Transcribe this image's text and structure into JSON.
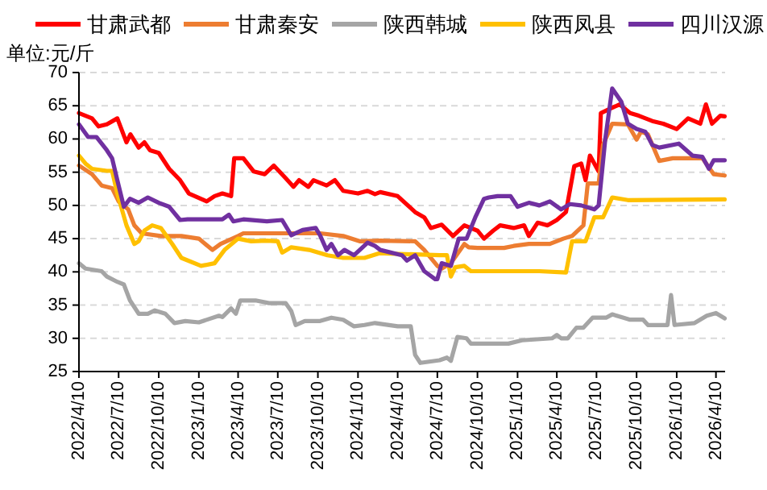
{
  "chart_data": {
    "type": "line",
    "ylabel": "单位:元/斤",
    "legend": "top",
    "grid": "y",
    "line_style": "solid",
    "xlim": [
      "2022-04-10",
      "2026-05-01"
    ],
    "xticks": [
      {
        "value": "2022-04-10",
        "label": "2022/4/10"
      },
      {
        "value": "2022-07-10",
        "label": "2022/7/10"
      },
      {
        "value": "2022-10-10",
        "label": "2022/10/10"
      },
      {
        "value": "2023-01-10",
        "label": "2023/1/10"
      },
      {
        "value": "2023-04-10",
        "label": "2023/4/10"
      },
      {
        "value": "2023-07-10",
        "label": "2023/7/10"
      },
      {
        "value": "2023-10-10",
        "label": "2023/10/10"
      },
      {
        "value": "2024-01-10",
        "label": "2024/1/10"
      },
      {
        "value": "2024-04-10",
        "label": "2024/4/10"
      },
      {
        "value": "2024-07-10",
        "label": "2024/7/10"
      },
      {
        "value": "2024-10-10",
        "label": "2024/10/10"
      },
      {
        "value": "2025-01-10",
        "label": "2025/1/10"
      },
      {
        "value": "2025-04-10",
        "label": "2025/4/10"
      },
      {
        "value": "2025-07-10",
        "label": "2025/7/10"
      },
      {
        "value": "2025-10-10",
        "label": "2025/10/10"
      },
      {
        "value": "2026-01-10",
        "label": "2026/1/10"
      },
      {
        "value": "2026-04-10",
        "label": "2026/4/10"
      }
    ],
    "ylim": [
      25,
      70
    ],
    "yticks": [
      25,
      30,
      35,
      40,
      45,
      50,
      55,
      60,
      65,
      70
    ],
    "series": [
      {
        "name": "甘肃武都",
        "color": "#ff0000",
        "x": [
          "2022-04-10",
          "2022-05-10",
          "2022-05-25",
          "2022-06-13",
          "2022-07-07",
          "2022-07-28",
          "2022-08-06",
          "2022-08-25",
          "2022-09-07",
          "2022-09-20",
          "2022-10-10",
          "2022-11-03",
          "2022-11-28",
          "2022-12-18",
          "2023-01-28",
          "2023-02-15",
          "2023-03-05",
          "2023-03-25",
          "2023-04-01",
          "2023-04-22",
          "2023-05-16",
          "2023-06-10",
          "2023-07-01",
          "2023-07-28",
          "2023-08-15",
          "2023-08-28",
          "2023-09-18",
          "2023-09-30",
          "2023-10-30",
          "2023-11-18",
          "2023-12-07",
          "2024-01-10",
          "2024-02-01",
          "2024-02-18",
          "2024-03-01",
          "2024-04-10",
          "2024-05-20",
          "2024-06-10",
          "2024-06-25",
          "2024-07-20",
          "2024-08-15",
          "2024-09-10",
          "2024-10-10",
          "2024-10-25",
          "2024-11-15",
          "2024-12-01",
          "2025-01-01",
          "2025-01-25",
          "2025-02-05",
          "2025-02-25",
          "2025-03-20",
          "2025-04-10",
          "2025-05-01",
          "2025-05-20",
          "2025-06-05",
          "2025-06-15",
          "2025-06-25",
          "2025-07-15",
          "2025-07-20",
          "2025-08-15",
          "2025-09-01",
          "2025-09-25",
          "2025-10-15",
          "2025-11-15",
          "2025-12-10",
          "2026-01-10",
          "2026-02-05",
          "2026-03-05",
          "2026-03-18",
          "2026-04-01",
          "2026-04-20",
          "2026-04-30"
        ],
        "values": [
          63.9,
          63.1,
          61.9,
          62.2,
          63.1,
          59.5,
          60.7,
          58.7,
          59.5,
          58.3,
          57.9,
          55.5,
          53.8,
          51.8,
          50.6,
          51.4,
          51.8,
          51.4,
          57.1,
          57.1,
          55.1,
          54.7,
          56.0,
          54.1,
          52.8,
          53.8,
          52.8,
          53.8,
          53.0,
          53.8,
          52.2,
          51.8,
          52.2,
          51.7,
          52.0,
          51.4,
          49.0,
          48.2,
          46.6,
          47.1,
          45.4,
          47.0,
          46.2,
          45.0,
          46.2,
          47.0,
          46.6,
          47.0,
          45.4,
          47.4,
          47.0,
          47.8,
          49.0,
          55.9,
          56.3,
          53.8,
          57.5,
          55.1,
          63.9,
          64.7,
          65.2,
          63.9,
          63.5,
          62.7,
          62.3,
          61.5,
          63.1,
          62.3,
          65.2,
          62.3,
          63.5,
          63.4
        ]
      },
      {
        "name": "甘肃秦安",
        "color": "#ed7d31",
        "x": [
          "2022-04-10",
          "2022-05-10",
          "2022-06-01",
          "2022-06-25",
          "2022-07-10",
          "2022-08-01",
          "2022-08-15",
          "2022-09-01",
          "2022-10-15",
          "2022-12-01",
          "2023-01-10",
          "2023-02-10",
          "2023-03-01",
          "2023-04-10",
          "2023-04-22",
          "2023-10-15",
          "2023-12-07",
          "2024-01-15",
          "2024-03-01",
          "2024-05-20",
          "2024-06-10",
          "2024-07-10",
          "2024-07-20",
          "2024-08-10",
          "2024-09-10",
          "2024-09-20",
          "2024-10-10",
          "2024-12-10",
          "2025-01-01",
          "2025-02-05",
          "2025-03-25",
          "2025-04-25",
          "2025-05-15",
          "2025-06-10",
          "2025-06-20",
          "2025-07-15",
          "2025-07-25",
          "2025-08-15",
          "2025-09-20",
          "2025-10-10",
          "2025-10-20",
          "2025-11-05",
          "2025-12-01",
          "2026-01-01",
          "2026-03-10",
          "2026-04-05",
          "2026-04-30"
        ],
        "values": [
          56.0,
          54.7,
          53.0,
          52.6,
          50.6,
          49.4,
          47.0,
          45.8,
          45.4,
          45.4,
          45.0,
          43.3,
          44.2,
          45.4,
          45.8,
          45.8,
          45.4,
          44.6,
          44.7,
          44.6,
          43.3,
          40.9,
          40.5,
          41.3,
          44.2,
          43.7,
          43.6,
          43.6,
          43.9,
          44.2,
          44.2,
          45.0,
          45.4,
          47.0,
          53.3,
          53.3,
          59.1,
          62.3,
          62.2,
          59.9,
          61.1,
          60.7,
          56.7,
          57.1,
          57.1,
          54.7,
          54.5
        ]
      },
      {
        "name": "陕西韩城",
        "color": "#a5a5a5",
        "x": [
          "2022-04-10",
          "2022-04-25",
          "2022-06-01",
          "2022-06-13",
          "2022-07-07",
          "2022-07-22",
          "2022-08-05",
          "2022-08-25",
          "2022-09-15",
          "2022-10-01",
          "2022-10-25",
          "2022-11-15",
          "2022-12-10",
          "2023-01-10",
          "2023-02-25",
          "2023-03-05",
          "2023-03-25",
          "2023-04-05",
          "2023-04-15",
          "2023-05-20",
          "2023-06-20",
          "2023-07-28",
          "2023-08-10",
          "2023-08-20",
          "2023-09-10",
          "2023-10-15",
          "2023-11-10",
          "2023-12-07",
          "2024-01-01",
          "2024-01-25",
          "2024-02-18",
          "2024-04-10",
          "2024-05-10",
          "2024-05-20",
          "2024-06-01",
          "2024-07-15",
          "2024-08-01",
          "2024-08-10",
          "2024-08-25",
          "2024-09-15",
          "2024-09-25",
          "2024-12-20",
          "2025-01-20",
          "2025-03-30",
          "2025-04-10",
          "2025-04-20",
          "2025-05-05",
          "2025-05-25",
          "2025-06-10",
          "2025-07-01",
          "2025-08-01",
          "2025-08-15",
          "2025-09-10",
          "2025-09-25",
          "2025-10-25",
          "2025-11-05",
          "2025-12-20",
          "2025-12-28",
          "2026-01-05",
          "2026-02-20",
          "2026-03-20",
          "2026-04-10",
          "2026-04-30"
        ],
        "values": [
          41.3,
          40.5,
          40.1,
          39.3,
          38.5,
          38.1,
          35.7,
          33.7,
          33.7,
          34.2,
          33.7,
          32.3,
          32.6,
          32.4,
          33.4,
          33.2,
          34.5,
          33.7,
          35.7,
          35.7,
          35.3,
          35.3,
          34.1,
          32.0,
          32.6,
          32.6,
          33.1,
          32.8,
          31.8,
          32.0,
          32.3,
          31.8,
          31.8,
          27.5,
          26.3,
          26.7,
          27.1,
          26.6,
          30.2,
          30.0,
          29.2,
          29.2,
          29.7,
          30.0,
          30.5,
          30.0,
          30.0,
          31.6,
          31.6,
          33.1,
          33.1,
          33.6,
          33.1,
          32.8,
          32.8,
          32.0,
          32.0,
          36.5,
          32.0,
          32.3,
          33.4,
          33.8,
          33.0
        ]
      },
      {
        "name": "陕西凤县",
        "color": "#ffc000",
        "x": [
          "2022-04-10",
          "2022-04-25",
          "2022-05-10",
          "2022-06-13",
          "2022-06-25",
          "2022-07-07",
          "2022-07-28",
          "2022-08-15",
          "2022-08-25",
          "2022-09-07",
          "2022-09-25",
          "2022-10-15",
          "2022-11-10",
          "2022-12-01",
          "2023-01-15",
          "2023-02-15",
          "2023-03-10",
          "2023-04-10",
          "2023-05-10",
          "2023-06-15",
          "2023-07-10",
          "2023-07-20",
          "2023-08-10",
          "2023-09-20",
          "2023-11-01",
          "2023-12-07",
          "2024-01-25",
          "2024-02-28",
          "2024-07-15",
          "2024-08-01",
          "2024-08-10",
          "2024-08-20",
          "2024-09-10",
          "2024-09-25",
          "2025-03-01",
          "2025-05-01",
          "2025-05-15",
          "2025-06-15",
          "2025-07-05",
          "2025-07-25",
          "2025-08-15",
          "2025-09-20",
          "2026-04-30"
        ],
        "values": [
          57.5,
          56.3,
          55.5,
          55.2,
          55.2,
          51.8,
          47.0,
          44.2,
          44.6,
          46.2,
          47.0,
          46.6,
          44.2,
          42.1,
          40.9,
          41.3,
          43.3,
          45.0,
          44.6,
          44.7,
          44.6,
          42.9,
          43.7,
          43.3,
          42.5,
          42.1,
          42.1,
          42.8,
          42.5,
          42.5,
          39.3,
          40.7,
          40.9,
          40.1,
          40.1,
          39.9,
          44.6,
          44.6,
          48.2,
          48.2,
          51.2,
          50.8,
          50.9
        ]
      },
      {
        "name": "四川汉源",
        "color": "#7030a0",
        "x": [
          "2022-04-10",
          "2022-05-01",
          "2022-05-20",
          "2022-06-13",
          "2022-06-25",
          "2022-07-07",
          "2022-07-22",
          "2022-08-05",
          "2022-08-25",
          "2022-09-15",
          "2022-10-10",
          "2022-11-03",
          "2022-11-28",
          "2022-12-15",
          "2023-01-28",
          "2023-03-05",
          "2023-03-20",
          "2023-03-30",
          "2023-04-22",
          "2023-06-15",
          "2023-07-20",
          "2023-08-10",
          "2023-09-05",
          "2023-10-05",
          "2023-10-15",
          "2023-10-30",
          "2023-11-10",
          "2023-11-25",
          "2023-12-10",
          "2024-01-01",
          "2024-02-01",
          "2024-02-18",
          "2024-03-01",
          "2024-04-20",
          "2024-05-01",
          "2024-05-20",
          "2024-06-10",
          "2024-07-05",
          "2024-07-10",
          "2024-07-20",
          "2024-08-10",
          "2024-08-28",
          "2024-09-15",
          "2024-10-05",
          "2024-10-25",
          "2024-11-05",
          "2024-11-25",
          "2024-12-25",
          "2025-01-10",
          "2025-02-05",
          "2025-03-01",
          "2025-03-25",
          "2025-04-20",
          "2025-05-10",
          "2025-06-05",
          "2025-07-05",
          "2025-07-15",
          "2025-07-30",
          "2025-08-15",
          "2025-09-05",
          "2025-09-20",
          "2025-10-10",
          "2025-10-30",
          "2025-11-15",
          "2025-12-01",
          "2026-01-15",
          "2026-02-15",
          "2026-03-10",
          "2026-03-25",
          "2026-04-05",
          "2026-04-30"
        ],
        "values": [
          62.2,
          60.3,
          60.3,
          58.3,
          57.1,
          53.8,
          49.8,
          51.0,
          50.4,
          51.2,
          50.4,
          49.8,
          47.8,
          47.9,
          47.9,
          47.9,
          48.6,
          47.6,
          47.9,
          47.6,
          47.8,
          45.5,
          46.3,
          46.6,
          45.5,
          43.3,
          44.2,
          42.5,
          43.3,
          42.5,
          44.4,
          43.9,
          43.3,
          42.5,
          41.7,
          42.5,
          40.1,
          38.9,
          38.9,
          41.3,
          40.9,
          45.0,
          45.0,
          48.2,
          51.0,
          51.2,
          51.4,
          51.4,
          49.8,
          50.4,
          50.0,
          50.6,
          49.4,
          50.2,
          50.0,
          49.4,
          50.0,
          59.9,
          67.6,
          65.6,
          62.3,
          61.5,
          61.1,
          59.1,
          58.7,
          59.3,
          57.5,
          57.3,
          55.5,
          56.8,
          56.8
        ]
      }
    ]
  }
}
